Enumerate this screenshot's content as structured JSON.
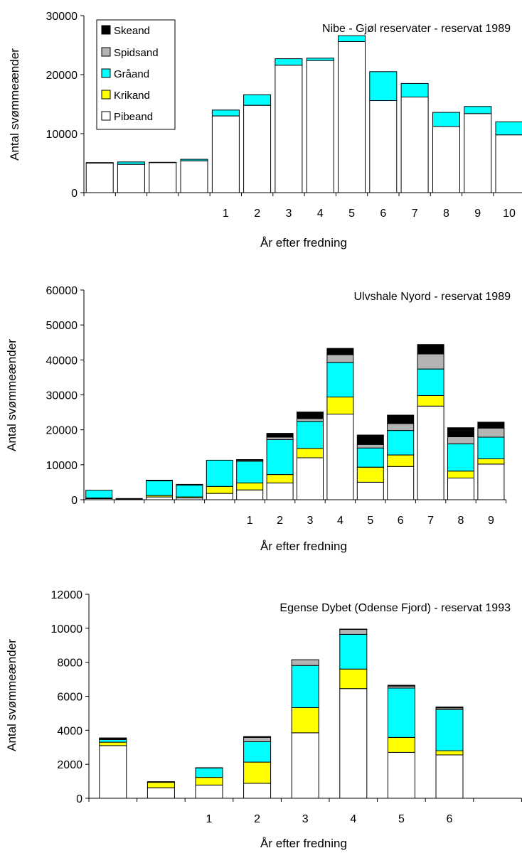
{
  "segments": [
    "Pibeand",
    "Krikand",
    "Gråand",
    "Spidsand",
    "Skeand"
  ],
  "colors": {
    "Pibeand": "#ffffff",
    "Krikand": "#ffff00",
    "Gråand": "#00ffff",
    "Spidsand": "#b4b4b4",
    "Skeand": "#000000"
  },
  "chart_data": [
    {
      "type": "bar",
      "stacked": true,
      "title": "Nibe - Gjøl reservater - reservat 1989",
      "xlabel": "År efter fredning",
      "ylabel": "Antal svømmeænder",
      "ylim": [
        0,
        30000
      ],
      "yticks": [
        0,
        10000,
        20000,
        30000
      ],
      "categories": [
        "",
        "",
        "",
        "",
        "1",
        "2",
        "3",
        "4",
        "5",
        "6",
        "7",
        "8",
        "9",
        "10"
      ],
      "legend": {
        "placement": "top-left",
        "entries": [
          "Skeand",
          "Spidsand",
          "Gråand",
          "Krikand",
          "Pibeand"
        ]
      },
      "series": [
        {
          "name": "Pibeand",
          "values": [
            5000,
            4800,
            5100,
            5400,
            13000,
            14800,
            21600,
            22400,
            25600,
            15600,
            16200,
            11200,
            13400,
            9800
          ]
        },
        {
          "name": "Krikand",
          "values": [
            0,
            0,
            0,
            0,
            0,
            0,
            0,
            0,
            0,
            0,
            0,
            0,
            0,
            0
          ]
        },
        {
          "name": "Gråand",
          "values": [
            100,
            400,
            50,
            250,
            1000,
            1800,
            1100,
            400,
            1000,
            4900,
            2300,
            2400,
            1200,
            2200
          ]
        },
        {
          "name": "Spidsand",
          "values": [
            0,
            0,
            0,
            0,
            0,
            0,
            0,
            0,
            0,
            0,
            0,
            0,
            0,
            0
          ]
        },
        {
          "name": "Skeand",
          "values": [
            0,
            0,
            0,
            0,
            0,
            0,
            0,
            0,
            0,
            0,
            0,
            0,
            0,
            0
          ]
        }
      ]
    },
    {
      "type": "bar",
      "stacked": true,
      "title": "Ulvshale Nyord - reservat 1989",
      "xlabel": "År efter fredning",
      "ylabel": "Antal svømmeænder",
      "ylim": [
        0,
        60000
      ],
      "yticks": [
        0,
        10000,
        20000,
        30000,
        40000,
        50000,
        60000
      ],
      "categories": [
        "",
        "",
        "",
        "",
        "",
        "1",
        "2",
        "3",
        "4",
        "5",
        "6",
        "7",
        "8",
        "9"
      ],
      "series": [
        {
          "name": "Pibeand",
          "values": [
            300,
            200,
            800,
            500,
            1800,
            2800,
            4800,
            12000,
            24500,
            5000,
            9500,
            26800,
            6200,
            10200
          ]
        },
        {
          "name": "Krikand",
          "values": [
            200,
            50,
            400,
            300,
            2000,
            2000,
            2400,
            2700,
            4900,
            4300,
            3300,
            3000,
            2000,
            1500
          ]
        },
        {
          "name": "Gråand",
          "values": [
            2200,
            100,
            4200,
            3400,
            7500,
            6200,
            10000,
            7700,
            9900,
            5500,
            7000,
            7600,
            7800,
            6200
          ]
        },
        {
          "name": "Spidsand",
          "values": [
            0,
            0,
            200,
            200,
            0,
            300,
            700,
            800,
            2200,
            1000,
            2000,
            4300,
            2000,
            2600
          ]
        },
        {
          "name": "Skeand",
          "values": [
            0,
            0,
            0,
            0,
            0,
            200,
            1100,
            1900,
            1800,
            2700,
            2400,
            2700,
            2600,
            1700
          ]
        }
      ]
    },
    {
      "type": "bar",
      "stacked": true,
      "title": "Egense Dybet (Odense Fjord) - reservat 1993",
      "xlabel": "År efter fredning",
      "ylabel": "Antal svømmeænder",
      "ylim": [
        0,
        12000
      ],
      "yticks": [
        0,
        2000,
        4000,
        6000,
        8000,
        10000,
        12000
      ],
      "categories": [
        "",
        "",
        "1",
        "2",
        "3",
        "4",
        "5",
        "6",
        ""
      ],
      "series": [
        {
          "name": "Pibeand",
          "values": [
            3100,
            620,
            780,
            880,
            3850,
            6450,
            2700,
            2550,
            0
          ]
        },
        {
          "name": "Krikand",
          "values": [
            200,
            320,
            450,
            1250,
            1480,
            1150,
            880,
            250,
            0
          ]
        },
        {
          "name": "Gråand",
          "values": [
            150,
            40,
            550,
            1200,
            2480,
            2040,
            2900,
            2420,
            0
          ]
        },
        {
          "name": "Spidsand",
          "values": [
            50,
            0,
            20,
            250,
            340,
            290,
            120,
            100,
            0
          ]
        },
        {
          "name": "Skeand",
          "values": [
            50,
            0,
            0,
            50,
            0,
            20,
            50,
            50,
            0
          ]
        }
      ]
    }
  ]
}
